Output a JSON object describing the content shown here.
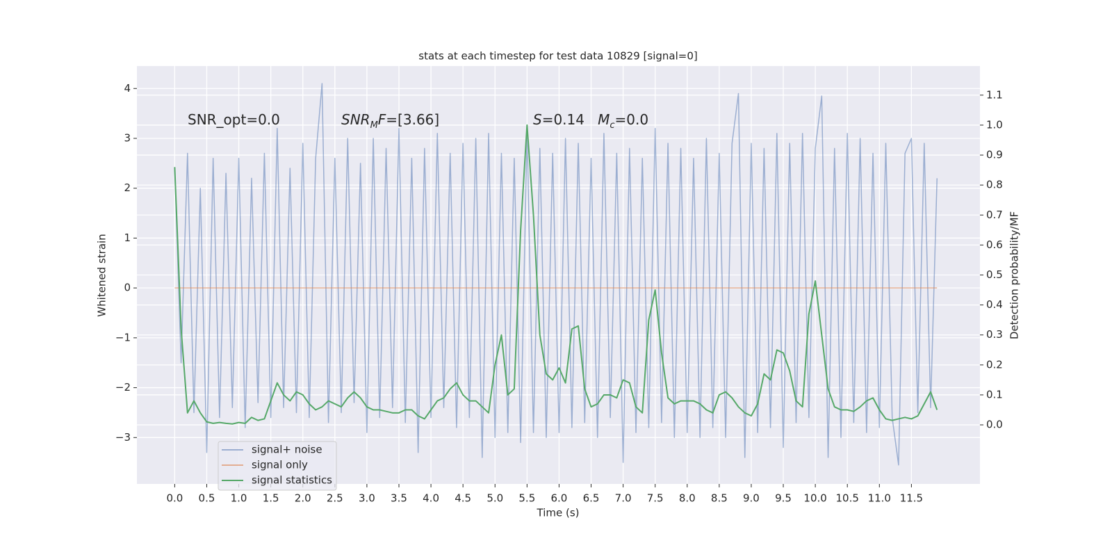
{
  "chart_data": {
    "type": "line",
    "title": "stats at each timestep for test data 10829 [signal=0]",
    "xlabel": "Time (s)",
    "ylabel": "Whitened strain",
    "y2label": "Detection probability/MF",
    "xlim": [
      -0.59,
      12.57
    ],
    "ylim": [
      -3.93,
      4.45
    ],
    "y2lim": [
      -0.197,
      1.197
    ],
    "xticks": [
      {
        "value": 0,
        "label": "0.0"
      },
      0.5,
      {
        "value": 1,
        "label": "1.0"
      },
      1.5,
      {
        "value": 2,
        "label": "2.0"
      },
      2.5,
      {
        "value": 3,
        "label": "3.0"
      },
      3.5,
      {
        "value": 4,
        "label": "4.0"
      },
      4.5,
      {
        "value": 5,
        "label": "5.0"
      },
      5.5,
      {
        "value": 6,
        "label": "6.0"
      },
      6.5,
      {
        "value": 7,
        "label": "7.0"
      },
      7.5,
      {
        "value": 8,
        "label": "8.0"
      },
      8.5,
      {
        "value": 9,
        "label": "9.0"
      },
      9.5,
      {
        "value": 10,
        "label": "10.0"
      },
      10.5,
      {
        "value": 11,
        "label": "11.0"
      },
      11.5
    ],
    "yticks": [
      {
        "value": -3,
        "label": "−3"
      },
      {
        "value": -2,
        "label": "−2"
      },
      {
        "value": -1,
        "label": "−1"
      },
      0,
      1,
      2,
      3,
      4
    ],
    "y2ticks": [
      {
        "value": 0,
        "label": "0.0"
      },
      0.1,
      0.2,
      0.3,
      0.4,
      0.5,
      0.6,
      0.7,
      0.8,
      0.9,
      {
        "value": 1,
        "label": "1.0"
      },
      1.1
    ],
    "grid": true,
    "legend": "lower left",
    "background": "#eaeaf2",
    "x": [
      0,
      0.1,
      0.2,
      0.3,
      0.4,
      0.5,
      0.6,
      0.7,
      0.8,
      0.9,
      1,
      1.1,
      1.2,
      1.3,
      1.4,
      1.5,
      1.6,
      1.7,
      1.8,
      1.9,
      2,
      2.1,
      2.2,
      2.3,
      2.4,
      2.5,
      2.6,
      2.7,
      2.8,
      2.9,
      3,
      3.1,
      3.2,
      3.3,
      3.4,
      3.5,
      3.6,
      3.7,
      3.8,
      3.9,
      4,
      4.1,
      4.2,
      4.3,
      4.4,
      4.5,
      4.6,
      4.7,
      4.8,
      4.9,
      5,
      5.1,
      5.2,
      5.3,
      5.4,
      5.5,
      5.6,
      5.7,
      5.8,
      5.9,
      6,
      6.1,
      6.2,
      6.3,
      6.4,
      6.5,
      6.6,
      6.7,
      6.8,
      6.9,
      7,
      7.1,
      7.2,
      7.3,
      7.4,
      7.5,
      7.6,
      7.7,
      7.8,
      7.9,
      8,
      8.1,
      8.2,
      8.3,
      8.4,
      8.5,
      8.6,
      8.7,
      8.8,
      8.9,
      9,
      9.1,
      9.2,
      9.3,
      9.4,
      9.5,
      9.6,
      9.7,
      9.8,
      9.9,
      10,
      10.1,
      10.2,
      10.3,
      10.4,
      10.5,
      10.6,
      10.7,
      10.8,
      10.9,
      11,
      11.1,
      11.2,
      11.3,
      11.4,
      11.5,
      11.6,
      11.7,
      11.8,
      11.9
    ],
    "series": [
      {
        "name": "signal+ noise",
        "color": "#4c72b0",
        "opacity": 0.5,
        "values": [
          2.4,
          -1.5,
          2.7,
          -2.5,
          2.0,
          -3.3,
          2.6,
          -2.6,
          2.3,
          -2.4,
          2.6,
          -2.8,
          2.2,
          -2.3,
          2.7,
          -2.6,
          3.2,
          -2.4,
          2.4,
          -2.5,
          2.9,
          -2.6,
          2.6,
          4.1,
          -2.7,
          2.6,
          -2.5,
          3.0,
          -2.3,
          2.5,
          -2.9,
          3.0,
          -2.6,
          2.8,
          -2.4,
          3.2,
          -2.7,
          2.6,
          -3.3,
          2.8,
          -2.6,
          3.1,
          -2.4,
          2.7,
          -2.8,
          2.9,
          -2.6,
          3.0,
          -3.4,
          3.1,
          -3.0,
          2.7,
          -2.9,
          2.6,
          -3.1,
          3.1,
          -2.9,
          2.8,
          -3.0,
          2.7,
          -2.9,
          3.0,
          -2.8,
          2.9,
          -2.7,
          2.6,
          -3.0,
          3.1,
          -2.6,
          2.7,
          -3.5,
          2.8,
          -2.9,
          2.6,
          -2.8,
          3.2,
          -2.7,
          2.9,
          -3.0,
          2.8,
          -2.9,
          2.6,
          -3.0,
          3.0,
          -2.8,
          2.7,
          -3.0,
          2.9,
          3.9,
          -3.4,
          2.9,
          -2.9,
          2.8,
          -2.8,
          3.1,
          -3.2,
          2.9,
          -2.7,
          3.1,
          -2.6,
          2.8,
          3.85,
          -3.4,
          2.8,
          -3.0,
          3.1,
          -2.7,
          3.0,
          -2.9,
          2.7,
          -2.8,
          2.9,
          -2.6,
          -3.55,
          2.7,
          3.0,
          -2.5,
          2.9,
          -2.4,
          2.2
        ]
      },
      {
        "name": "signal only",
        "color": "#dd8452",
        "opacity": 0.6,
        "x": [
          0,
          11.9
        ],
        "values": [
          0,
          0
        ]
      },
      {
        "name": "signal statistics",
        "color": "#55a868",
        "opacity": 1,
        "axis": "y2",
        "values": [
          0.86,
          0.32,
          0.04,
          0.08,
          0.04,
          0.01,
          0.005,
          0.008,
          0.005,
          0.003,
          0.008,
          0.005,
          0.025,
          0.015,
          0.02,
          0.08,
          0.14,
          0.1,
          0.08,
          0.11,
          0.1,
          0.07,
          0.05,
          0.06,
          0.08,
          0.07,
          0.06,
          0.09,
          0.11,
          0.09,
          0.06,
          0.05,
          0.05,
          0.045,
          0.04,
          0.04,
          0.05,
          0.05,
          0.03,
          0.02,
          0.05,
          0.08,
          0.09,
          0.12,
          0.14,
          0.1,
          0.08,
          0.08,
          0.06,
          0.04,
          0.2,
          0.3,
          0.1,
          0.12,
          0.65,
          1.0,
          0.7,
          0.3,
          0.17,
          0.15,
          0.19,
          0.14,
          0.32,
          0.33,
          0.12,
          0.06,
          0.07,
          0.1,
          0.1,
          0.09,
          0.15,
          0.14,
          0.06,
          0.04,
          0.35,
          0.45,
          0.24,
          0.09,
          0.07,
          0.08,
          0.08,
          0.08,
          0.07,
          0.05,
          0.04,
          0.1,
          0.11,
          0.09,
          0.06,
          0.04,
          0.03,
          0.07,
          0.17,
          0.15,
          0.25,
          0.24,
          0.18,
          0.08,
          0.06,
          0.37,
          0.48,
          0.3,
          0.12,
          0.06,
          0.05,
          0.05,
          0.045,
          0.06,
          0.08,
          0.09,
          0.05,
          0.02,
          0.015,
          0.02,
          0.025,
          0.02,
          0.03,
          0.07,
          0.11,
          0.05
        ]
      }
    ],
    "annotations": [
      {
        "parts": [
          {
            "t": "SNR_opt=0.0"
          }
        ]
      },
      {
        "parts": [
          {
            "t": "SNR",
            "italic": true
          },
          {
            "t": "M",
            "italic": true,
            "sub": true
          },
          {
            "t": "F",
            "italic": true
          },
          {
            "t": "=[3.66]"
          }
        ]
      },
      {
        "parts": [
          {
            "t": "S",
            "italic": true
          },
          {
            "t": "=0.14   "
          },
          {
            "t": "M",
            "italic": true
          },
          {
            "t": "c",
            "italic": true,
            "sub": true
          },
          {
            "t": "=0.0"
          }
        ]
      }
    ]
  }
}
